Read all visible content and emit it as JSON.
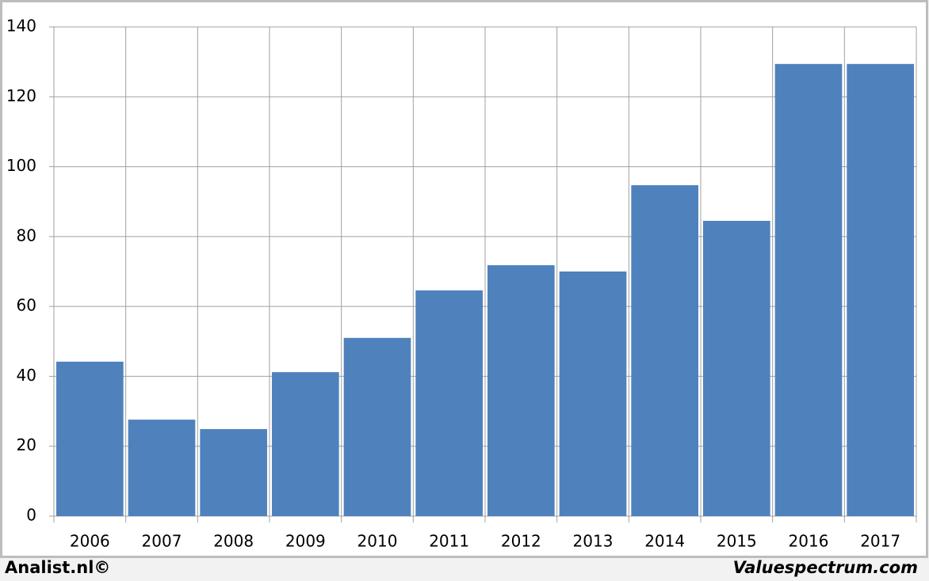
{
  "chart_data": {
    "type": "bar",
    "categories": [
      "2006",
      "2007",
      "2008",
      "2009",
      "2010",
      "2011",
      "2012",
      "2013",
      "2014",
      "2015",
      "2016",
      "2017"
    ],
    "values": [
      44.2,
      27.6,
      24.9,
      41.2,
      51,
      64.6,
      71.8,
      70,
      94.7,
      84.5,
      129.4,
      129.4
    ],
    "color": "#4f81bd",
    "ylim": [
      0,
      140
    ],
    "yticks": [
      0,
      20,
      40,
      60,
      80,
      100,
      120,
      140
    ],
    "grid": true
  },
  "credits": {
    "left": "Analist.nl©",
    "right": "Valuespectrum.com"
  }
}
